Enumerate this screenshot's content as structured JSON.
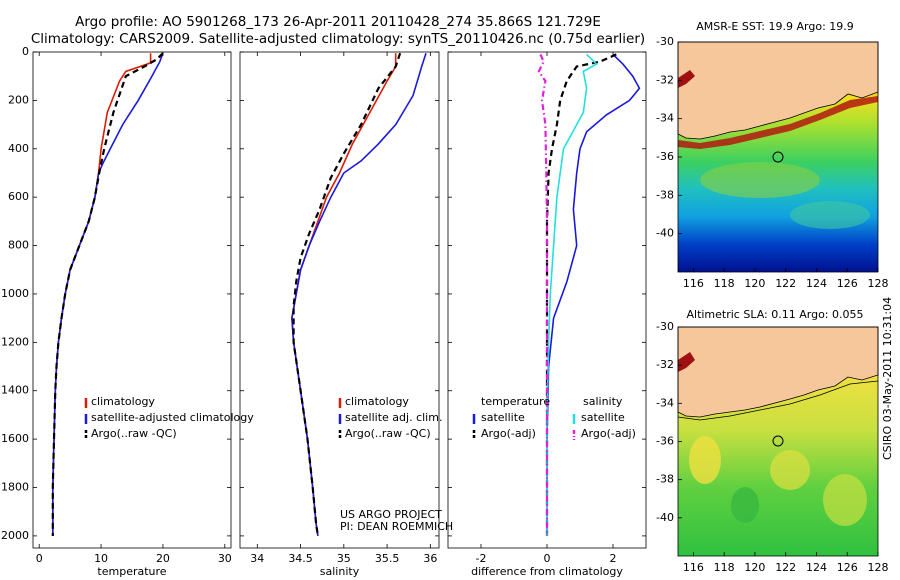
{
  "header": {
    "line1": "Argo profile: AO 5901268_173 26-Apr-2011 20110428_274 35.866S 121.729E",
    "line2": "Climatology: CARS2009. Satellite-adjusted climatology: synTS_20110426.nc (0.75d earlier)"
  },
  "side_stamp": "CSIRO 03-May-2011 10:31:04",
  "colors": {
    "climatology": "#dd1c05",
    "satellite": "#1a1adf",
    "argo": "#000000",
    "satellite_salinity": "#22e0e0",
    "argo_salinity": "#e020e0",
    "land": "#f7c79c"
  },
  "chart_data": [
    {
      "id": "temperature",
      "type": "line",
      "xlabel": "temperature",
      "ylabel": "",
      "xlim": [
        -1,
        31
      ],
      "ylim": [
        0,
        2050
      ],
      "yreverse": true,
      "xticks": [
        0,
        10,
        20,
        30
      ],
      "yticks": [
        0,
        200,
        400,
        600,
        800,
        1000,
        1200,
        1400,
        1600,
        1800,
        2000
      ],
      "legend": [
        "climatology",
        "satellite-adjusted climatology",
        "Argo(..raw -QC)"
      ],
      "annotations": [],
      "series": [
        {
          "name": "climatology",
          "style": "solid",
          "x": [
            18.0,
            18.0,
            14.0,
            13.0,
            11.0,
            10.0,
            9.6,
            9.0,
            8.0,
            6.5,
            5.0,
            4.2,
            3.6,
            3.1,
            2.8,
            2.6,
            2.4,
            2.2,
            2.2
          ],
          "y": [
            5,
            45,
            80,
            120,
            250,
            400,
            500,
            600,
            700,
            800,
            900,
            1000,
            1100,
            1200,
            1300,
            1400,
            1600,
            1800,
            2000
          ]
        },
        {
          "name": "satellite-adjusted climatology",
          "style": "solid",
          "x": [
            20.0,
            19.5,
            18.0,
            16.0,
            13.5,
            11.5,
            10.3,
            9.6,
            9.0,
            8.0,
            6.5,
            5.0,
            4.2,
            3.6,
            3.1,
            2.8,
            2.6,
            2.4,
            2.2,
            2.2
          ],
          "y": [
            5,
            40,
            110,
            200,
            300,
            400,
            460,
            500,
            600,
            700,
            800,
            900,
            1000,
            1100,
            1200,
            1300,
            1400,
            1600,
            1800,
            2000
          ]
        },
        {
          "name": "Argo(..raw -QC)",
          "style": "dashed",
          "x": [
            20.0,
            19.0,
            17.0,
            14.0,
            12.0,
            10.5,
            9.7,
            9.0,
            8.0,
            6.5,
            5.0,
            4.2,
            3.6,
            3.1,
            2.8,
            2.6,
            2.4,
            2.2,
            2.2
          ],
          "y": [
            5,
            30,
            60,
            100,
            250,
            400,
            500,
            600,
            700,
            800,
            900,
            1000,
            1100,
            1200,
            1300,
            1400,
            1600,
            1800,
            2000
          ]
        }
      ]
    },
    {
      "id": "salinity",
      "type": "line",
      "xlabel": "salinity",
      "ylabel": "",
      "xlim": [
        33.8,
        36.1
      ],
      "ylim": [
        0,
        2050
      ],
      "yreverse": true,
      "xticks": [
        34,
        34.5,
        35,
        35.5,
        36
      ],
      "yticks": [
        0,
        200,
        400,
        600,
        800,
        1000,
        1200,
        1400,
        1600,
        1800,
        2000
      ],
      "legend": [
        "climatology",
        "satellite adj. clim.",
        "Argo(..raw -QC)"
      ],
      "annotations": [
        "US ARGO PROJECT",
        "PI: DEAN ROEMMICH"
      ],
      "series": [
        {
          "name": "climatology",
          "style": "solid",
          "x": [
            35.6,
            35.6,
            35.5,
            35.3,
            35.1,
            34.95,
            34.8,
            34.7,
            34.6,
            34.5,
            34.45,
            34.4,
            34.42,
            34.5,
            34.58,
            34.64,
            34.68,
            34.7
          ],
          "y": [
            5,
            60,
            120,
            250,
            380,
            500,
            600,
            700,
            800,
            900,
            1000,
            1100,
            1200,
            1400,
            1600,
            1800,
            1950,
            2000
          ]
        },
        {
          "name": "satellite adj. clim.",
          "style": "solid",
          "x": [
            35.95,
            35.9,
            35.8,
            35.6,
            35.4,
            35.2,
            35.0,
            34.85,
            34.72,
            34.6,
            34.5,
            34.45,
            34.4,
            34.42,
            34.5,
            34.58,
            34.64,
            34.68,
            34.7
          ],
          "y": [
            5,
            60,
            180,
            300,
            380,
            450,
            500,
            600,
            700,
            800,
            900,
            1000,
            1100,
            1200,
            1400,
            1600,
            1800,
            1950,
            2000
          ]
        },
        {
          "name": "Argo(..raw -QC)",
          "style": "dashed",
          "x": [
            35.65,
            35.6,
            35.4,
            35.2,
            35.0,
            34.85,
            34.72,
            34.6,
            34.5,
            34.45,
            34.42,
            34.42,
            34.5,
            34.58,
            34.64,
            34.68,
            34.7
          ],
          "y": [
            5,
            60,
            150,
            300,
            420,
            520,
            650,
            750,
            850,
            950,
            1050,
            1200,
            1400,
            1600,
            1800,
            1950,
            2000
          ]
        }
      ]
    },
    {
      "id": "difference",
      "type": "line",
      "xlabel": "difference from climatology",
      "ylabel": "",
      "xlim": [
        -3,
        3
      ],
      "ylim": [
        0,
        2050
      ],
      "yreverse": true,
      "xticks": [
        -2,
        0,
        2
      ],
      "yticks": [
        0,
        200,
        400,
        600,
        800,
        1000,
        1200,
        1400,
        1600,
        1800,
        2000
      ],
      "legend_titles": [
        "temperature",
        "salinity"
      ],
      "legend": [
        "satellite",
        "Argo(-adj)",
        "satellite",
        "Argo(-adj)"
      ],
      "annotations": [],
      "series": [
        {
          "name": "satellite",
          "group": "temperature",
          "style": "solid",
          "x": [
            2.0,
            2.3,
            2.6,
            2.8,
            2.5,
            1.8,
            1.2,
            1.0,
            0.9,
            0.8,
            0.9,
            0.6,
            0.2,
            0.05,
            0,
            0
          ],
          "y": [
            10,
            50,
            100,
            150,
            200,
            260,
            330,
            400,
            500,
            650,
            800,
            950,
            1100,
            1300,
            1600,
            2000
          ]
        },
        {
          "name": "Argo(-adj)",
          "group": "temperature",
          "style": "dashed",
          "x": [
            2.1,
            1.6,
            0.9,
            0.6,
            0.4,
            0.3,
            0.15,
            0.05,
            0,
            0,
            0
          ],
          "y": [
            10,
            40,
            60,
            120,
            200,
            300,
            400,
            500,
            700,
            1000,
            2000
          ]
        },
        {
          "name": "satellite",
          "group": "salinity",
          "style": "solid",
          "x": [
            1.2,
            1.5,
            1.1,
            1.2,
            1.1,
            0.9,
            0.7,
            0.5,
            0.3,
            0.2,
            0.1,
            0.05,
            0,
            0
          ],
          "y": [
            10,
            50,
            80,
            150,
            250,
            300,
            350,
            400,
            600,
            800,
            1000,
            1200,
            1500,
            2000
          ]
        },
        {
          "name": "Argo(-adj)",
          "group": "salinity",
          "style": "dashdot",
          "x": [
            -0.2,
            -0.1,
            -0.25,
            -0.05,
            -0.15,
            -0.05,
            -0.02,
            0,
            0
          ],
          "y": [
            10,
            40,
            80,
            120,
            200,
            300,
            500,
            700,
            2000
          ]
        }
      ]
    },
    {
      "id": "sst_map",
      "type": "heatmap",
      "title": "AMSR-E SST: 19.9 Argo: 19.9",
      "xlim": [
        115,
        128
      ],
      "ylim": [
        -42,
        -30
      ],
      "xticks": [
        116,
        118,
        120,
        122,
        124,
        126,
        128
      ],
      "yticks": [
        -30,
        -32,
        -34,
        -36,
        -38,
        -40
      ],
      "float_position": [
        121.729,
        -35.866
      ]
    },
    {
      "id": "sla_map",
      "type": "heatmap",
      "title": "Altimetric SLA: 0.11 Argo: 0.055",
      "xlim": [
        115,
        128
      ],
      "ylim": [
        -42,
        -30
      ],
      "xticks": [
        116,
        118,
        120,
        122,
        124,
        126,
        128
      ],
      "yticks": [
        -30,
        -32,
        -34,
        -36,
        -38,
        -40
      ],
      "float_position": [
        121.729,
        -35.866
      ]
    }
  ]
}
